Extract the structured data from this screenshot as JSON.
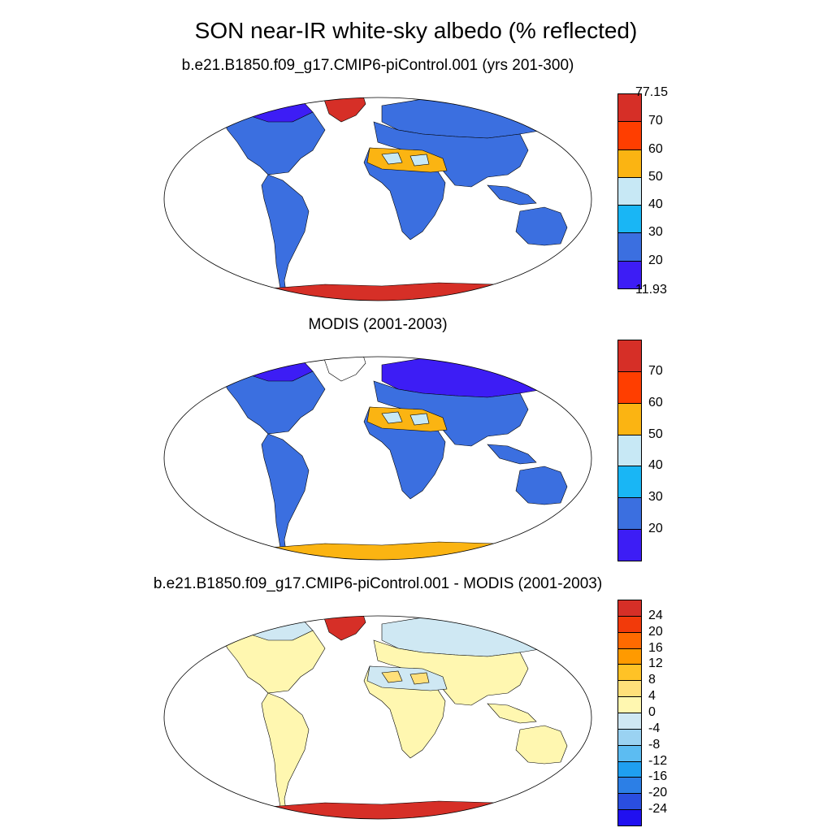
{
  "title": "SON near-IR white-sky albedo (% reflected)",
  "panels": [
    {
      "id": "model",
      "title": "b.e21.B1850.f09_g17.CMIP6-piControl.001 (yrs 201-300)",
      "colorbar": {
        "colors": [
          "#3d1df5",
          "#3b6fe0",
          "#19b6f5",
          "#c7e8f5",
          "#fbb412",
          "#ff3e00",
          "#d62f27"
        ],
        "labels": [
          "11.93",
          "20",
          "30",
          "40",
          "50",
          "60",
          "70",
          "77.15"
        ],
        "show_end_labels": true
      },
      "regions": {
        "land": "#3b6fe0",
        "boreal": "#3b6fe0",
        "desert": "#fbb412",
        "desert_accent": "#c7e8f5",
        "greenland": "#d62f27",
        "arctic_islands": "#d62f27",
        "antarctica": "#d62f27",
        "canada_north": "#3d1df5"
      }
    },
    {
      "id": "obs",
      "title": "MODIS (2001-2003)",
      "colorbar": {
        "colors": [
          "#3d1df5",
          "#3b6fe0",
          "#19b6f5",
          "#c7e8f5",
          "#fbb412",
          "#ff3e00",
          "#d62f27"
        ],
        "labels": [
          "",
          "20",
          "30",
          "40",
          "50",
          "60",
          "70",
          ""
        ],
        "show_end_labels": false
      },
      "regions": {
        "land": "#3b6fe0",
        "boreal": "#3d1df5",
        "desert": "#fbb412",
        "desert_accent": "#c7e8f5",
        "greenland": "#ffffff",
        "arctic_islands": "#c7e8f5",
        "antarctica": "#fbb412",
        "canada_north": "#3d1df5"
      }
    },
    {
      "id": "diff",
      "title": "b.e21.B1850.f09_g17.CMIP6-piControl.001 - MODIS (2001-2003)",
      "colorbar": {
        "colors": [
          "#2010f0",
          "#2a4ee0",
          "#2c7fe6",
          "#1f9ff0",
          "#5cbcf2",
          "#9ad2f2",
          "#cfe8f3",
          "#fff7b0",
          "#ffe07a",
          "#ffc226",
          "#ff9a00",
          "#ff6a00",
          "#f23a0a",
          "#d62f27"
        ],
        "labels": [
          "-24",
          "-20",
          "-16",
          "-12",
          "-8",
          "-4",
          "0",
          "4",
          "8",
          "12",
          "16",
          "20",
          "24"
        ],
        "show_end_labels": false
      },
      "regions": {
        "land": "#fff7b0",
        "boreal": "#cfe8f3",
        "desert": "#cfe8f3",
        "desert_accent": "#ffe07a",
        "greenland": "#d62f27",
        "arctic_islands": "#d62f27",
        "antarctica": "#d62f27",
        "canada_north": "#cfe8f3"
      }
    }
  ]
}
